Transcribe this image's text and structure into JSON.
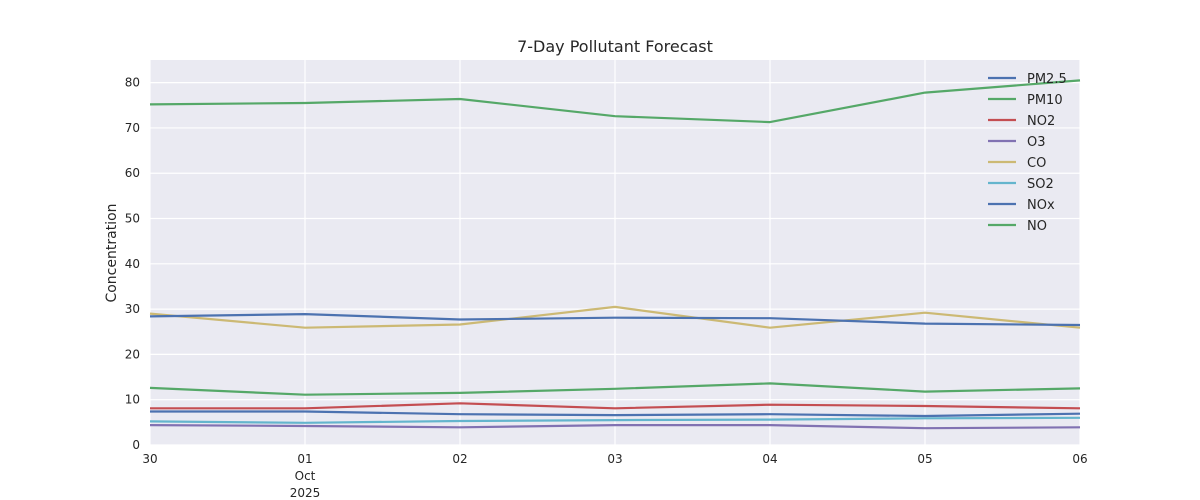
{
  "chart_data": {
    "type": "line",
    "title": "7-Day Pollutant Forecast",
    "xlabel": "",
    "ylabel": "Concentration",
    "ylim": [
      0,
      85
    ],
    "yticks": [
      0,
      10,
      20,
      30,
      40,
      50,
      60,
      70,
      80
    ],
    "x": [
      "2025-09-30",
      "2025-10-01",
      "2025-10-02",
      "2025-10-03",
      "2025-10-04",
      "2025-10-05",
      "2025-10-06"
    ],
    "xtick_labels": [
      {
        "day": "30",
        "month": "",
        "year": ""
      },
      {
        "day": "01",
        "month": "Oct",
        "year": "2025"
      },
      {
        "day": "02",
        "month": "",
        "year": ""
      },
      {
        "day": "03",
        "month": "",
        "year": ""
      },
      {
        "day": "04",
        "month": "",
        "year": ""
      },
      {
        "day": "05",
        "month": "",
        "year": ""
      },
      {
        "day": "06",
        "month": "",
        "year": ""
      }
    ],
    "grid": true,
    "legend_position": "top-right",
    "series": [
      {
        "name": "PM2.5",
        "color": "#4c72b0",
        "values": [
          7.4,
          7.4,
          6.8,
          6.6,
          6.8,
          6.4,
          6.9
        ]
      },
      {
        "name": "PM10",
        "color": "#55a868",
        "values": [
          12.6,
          11.1,
          11.5,
          12.4,
          13.6,
          11.8,
          12.5
        ]
      },
      {
        "name": "NO2",
        "color": "#c44e52",
        "values": [
          8.1,
          8.1,
          9.2,
          8.1,
          8.9,
          8.6,
          8.1
        ]
      },
      {
        "name": "O3",
        "color": "#8172b2",
        "values": [
          4.4,
          4.2,
          3.9,
          4.4,
          4.4,
          3.7,
          3.9
        ]
      },
      {
        "name": "CO",
        "color": "#ccb974",
        "values": [
          29.0,
          25.9,
          26.6,
          30.5,
          25.9,
          29.2,
          25.9
        ]
      },
      {
        "name": "SO2",
        "color": "#64b5cd",
        "values": [
          5.2,
          4.9,
          5.3,
          5.5,
          5.6,
          5.9,
          6.0
        ]
      },
      {
        "name": "NOx",
        "color": "#4c72b0",
        "values": [
          28.4,
          28.9,
          27.7,
          28.1,
          28.0,
          26.8,
          26.5
        ]
      },
      {
        "name": "NO",
        "color": "#55a868",
        "values": [
          75.2,
          75.5,
          76.4,
          72.6,
          71.3,
          77.8,
          80.5
        ]
      }
    ]
  }
}
